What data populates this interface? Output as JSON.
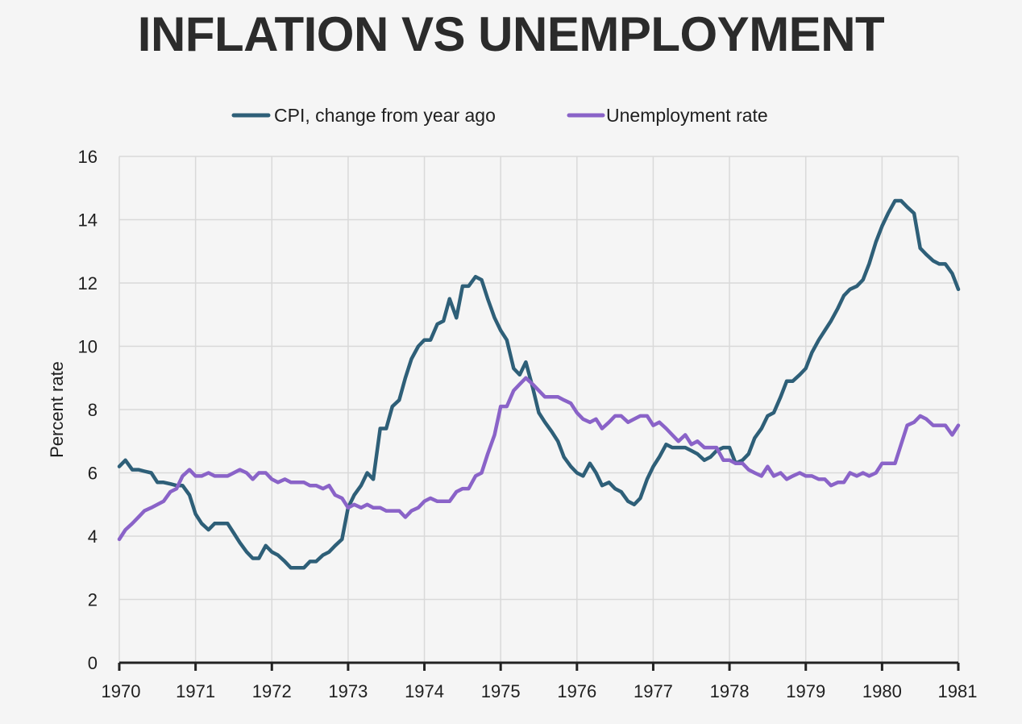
{
  "chart_data": {
    "type": "line",
    "title": "INFLATION VS UNEMPLOYMENT",
    "xlabel": "",
    "ylabel": "Percent rate",
    "xlim": [
      1970,
      1981
    ],
    "ylim": [
      0,
      16
    ],
    "grid": true,
    "legend_position": "top-center",
    "x_ticks": [
      "1970",
      "1971",
      "1972",
      "1973",
      "1974",
      "1975",
      "1976",
      "1977",
      "1978",
      "1979",
      "1980",
      "1981"
    ],
    "y_ticks": [
      "0",
      "2",
      "4",
      "6",
      "8",
      "10",
      "12",
      "14",
      "16"
    ],
    "colors": {
      "background": "#f5f5f5",
      "grid": "#d9d9d9",
      "axis": "#222222",
      "cpi": "#2e5f78",
      "unemployment": "#8a63c8"
    },
    "series": [
      {
        "name": "CPI, change from year ago",
        "color": "#2e5f78",
        "x": [
          1970.0,
          1970.08,
          1970.17,
          1970.25,
          1970.33,
          1970.42,
          1970.5,
          1970.58,
          1970.67,
          1970.75,
          1970.83,
          1970.92,
          1971.0,
          1971.08,
          1971.17,
          1971.25,
          1971.33,
          1971.42,
          1971.5,
          1971.58,
          1971.67,
          1971.75,
          1971.83,
          1971.92,
          1972.0,
          1972.08,
          1972.17,
          1972.25,
          1972.33,
          1972.42,
          1972.5,
          1972.58,
          1972.67,
          1972.75,
          1972.83,
          1972.92,
          1973.0,
          1973.08,
          1973.17,
          1973.25,
          1973.33,
          1973.42,
          1973.5,
          1973.58,
          1973.67,
          1973.75,
          1973.83,
          1973.92,
          1974.0,
          1974.08,
          1974.17,
          1974.25,
          1974.33,
          1974.42,
          1974.5,
          1974.58,
          1974.67,
          1974.75,
          1974.83,
          1974.92,
          1975.0,
          1975.08,
          1975.17,
          1975.25,
          1975.33,
          1975.42,
          1975.5,
          1975.58,
          1975.67,
          1975.75,
          1975.83,
          1975.92,
          1976.0,
          1976.08,
          1976.17,
          1976.25,
          1976.33,
          1976.42,
          1976.5,
          1976.58,
          1976.67,
          1976.75,
          1976.83,
          1976.92,
          1977.0,
          1977.08,
          1977.17,
          1977.25,
          1977.33,
          1977.42,
          1977.5,
          1977.58,
          1977.67,
          1977.75,
          1977.83,
          1977.92,
          1978.0,
          1978.08,
          1978.17,
          1978.25,
          1978.33,
          1978.42,
          1978.5,
          1978.58,
          1978.67,
          1978.75,
          1978.83,
          1978.92,
          1979.0,
          1979.08,
          1979.17,
          1979.25,
          1979.33,
          1979.42,
          1979.5,
          1979.58,
          1979.67,
          1979.75,
          1979.83,
          1979.92,
          1980.0,
          1980.08,
          1980.17,
          1980.25,
          1980.33,
          1980.42,
          1980.5,
          1980.58,
          1980.67,
          1980.75,
          1980.83,
          1980.92,
          1981.0
        ],
        "values": [
          6.2,
          6.4,
          6.1,
          6.1,
          6.05,
          6.0,
          5.7,
          5.7,
          5.65,
          5.6,
          5.6,
          5.3,
          4.7,
          4.4,
          4.2,
          4.4,
          4.4,
          4.4,
          4.1,
          3.8,
          3.5,
          3.3,
          3.3,
          3.7,
          3.5,
          3.4,
          3.2,
          3.0,
          3.0,
          3.0,
          3.2,
          3.2,
          3.4,
          3.5,
          3.7,
          3.9,
          4.9,
          5.3,
          5.6,
          6.0,
          5.8,
          7.4,
          7.4,
          8.1,
          8.3,
          9.0,
          9.6,
          10.0,
          10.2,
          10.2,
          10.7,
          10.8,
          11.5,
          10.9,
          11.9,
          11.9,
          12.2,
          12.1,
          11.5,
          10.9,
          10.5,
          10.2,
          9.3,
          9.1,
          9.5,
          8.7,
          7.9,
          7.6,
          7.3,
          7.0,
          6.5,
          6.2,
          6.0,
          5.9,
          6.3,
          6.0,
          5.6,
          5.7,
          5.5,
          5.4,
          5.1,
          5.0,
          5.2,
          5.8,
          6.2,
          6.5,
          6.9,
          6.8,
          6.8,
          6.8,
          6.7,
          6.6,
          6.4,
          6.5,
          6.7,
          6.8,
          6.8,
          6.3,
          6.4,
          6.6,
          7.1,
          7.4,
          7.8,
          7.9,
          8.4,
          8.9,
          8.9,
          9.1,
          9.3,
          9.8,
          10.2,
          10.5,
          10.8,
          11.2,
          11.6,
          11.8,
          11.9,
          12.1,
          12.6,
          13.3,
          13.8,
          14.2,
          14.6,
          14.6,
          14.4,
          14.2,
          13.1,
          12.9,
          12.7,
          12.6,
          12.6,
          12.3,
          11.8
        ]
      },
      {
        "name": "Unemployment rate",
        "color": "#8a63c8",
        "x": [
          1970.0,
          1970.08,
          1970.17,
          1970.25,
          1970.33,
          1970.42,
          1970.5,
          1970.58,
          1970.67,
          1970.75,
          1970.83,
          1970.92,
          1971.0,
          1971.08,
          1971.17,
          1971.25,
          1971.33,
          1971.42,
          1971.5,
          1971.58,
          1971.67,
          1971.75,
          1971.83,
          1971.92,
          1972.0,
          1972.08,
          1972.17,
          1972.25,
          1972.33,
          1972.42,
          1972.5,
          1972.58,
          1972.67,
          1972.75,
          1972.83,
          1972.92,
          1973.0,
          1973.08,
          1973.17,
          1973.25,
          1973.33,
          1973.42,
          1973.5,
          1973.58,
          1973.67,
          1973.75,
          1973.83,
          1973.92,
          1974.0,
          1974.08,
          1974.17,
          1974.25,
          1974.33,
          1974.42,
          1974.5,
          1974.58,
          1974.67,
          1974.75,
          1974.83,
          1974.92,
          1975.0,
          1975.08,
          1975.17,
          1975.25,
          1975.33,
          1975.42,
          1975.5,
          1975.58,
          1975.67,
          1975.75,
          1975.83,
          1975.92,
          1976.0,
          1976.08,
          1976.17,
          1976.25,
          1976.33,
          1976.42,
          1976.5,
          1976.58,
          1976.67,
          1976.75,
          1976.83,
          1976.92,
          1977.0,
          1977.08,
          1977.17,
          1977.25,
          1977.33,
          1977.42,
          1977.5,
          1977.58,
          1977.67,
          1977.75,
          1977.83,
          1977.92,
          1978.0,
          1978.08,
          1978.17,
          1978.25,
          1978.33,
          1978.42,
          1978.5,
          1978.58,
          1978.67,
          1978.75,
          1978.83,
          1978.92,
          1979.0,
          1979.08,
          1979.17,
          1979.25,
          1979.33,
          1979.42,
          1979.5,
          1979.58,
          1979.67,
          1979.75,
          1979.83,
          1979.92,
          1980.0,
          1980.08,
          1980.17,
          1980.25,
          1980.33,
          1980.42,
          1980.5,
          1980.58,
          1980.67,
          1980.75,
          1980.83,
          1980.92,
          1981.0
        ],
        "values": [
          3.9,
          4.2,
          4.4,
          4.6,
          4.8,
          4.9,
          5.0,
          5.1,
          5.4,
          5.5,
          5.9,
          6.1,
          5.9,
          5.9,
          6.0,
          5.9,
          5.9,
          5.9,
          6.0,
          6.1,
          6.0,
          5.8,
          6.0,
          6.0,
          5.8,
          5.7,
          5.8,
          5.7,
          5.7,
          5.7,
          5.6,
          5.6,
          5.5,
          5.6,
          5.3,
          5.2,
          4.9,
          5.0,
          4.9,
          5.0,
          4.9,
          4.9,
          4.8,
          4.8,
          4.8,
          4.6,
          4.8,
          4.9,
          5.1,
          5.2,
          5.1,
          5.1,
          5.1,
          5.4,
          5.5,
          5.5,
          5.9,
          6.0,
          6.6,
          7.2,
          8.1,
          8.1,
          8.6,
          8.8,
          9.0,
          8.8,
          8.6,
          8.4,
          8.4,
          8.4,
          8.3,
          8.2,
          7.9,
          7.7,
          7.6,
          7.7,
          7.4,
          7.6,
          7.8,
          7.8,
          7.6,
          7.7,
          7.8,
          7.8,
          7.5,
          7.6,
          7.4,
          7.2,
          7.0,
          7.2,
          6.9,
          7.0,
          6.8,
          6.8,
          6.8,
          6.4,
          6.4,
          6.3,
          6.3,
          6.1,
          6.0,
          5.9,
          6.2,
          5.9,
          6.0,
          5.8,
          5.9,
          6.0,
          5.9,
          5.9,
          5.8,
          5.8,
          5.6,
          5.7,
          5.7,
          6.0,
          5.9,
          6.0,
          5.9,
          6.0,
          6.3,
          6.3,
          6.3,
          6.9,
          7.5,
          7.6,
          7.8,
          7.7,
          7.5,
          7.5,
          7.5,
          7.2,
          7.5
        ]
      }
    ]
  }
}
